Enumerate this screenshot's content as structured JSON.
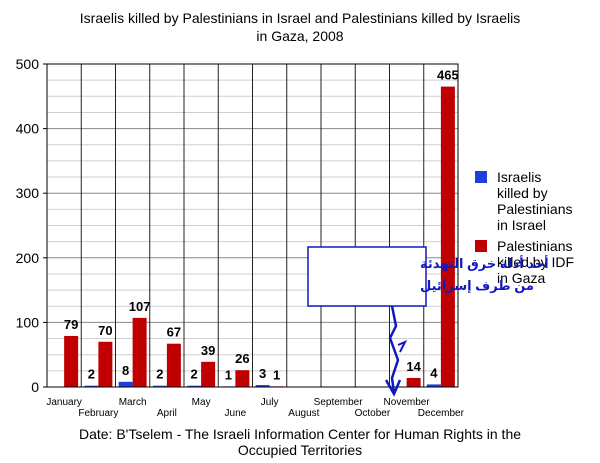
{
  "chart_data": {
    "type": "bar",
    "title": "Israelis killed by Palestinians in Israel and Palestinians killed by Israelis in Gaza, 2008",
    "title_lines": [
      "Israelis killed by Palestinians in Israel and Palestinians killed by Israelis",
      "in Gaza, 2008"
    ],
    "categories": [
      "January",
      "February",
      "March",
      "April",
      "May",
      "June",
      "July",
      "August",
      "September",
      "October",
      "November",
      "December"
    ],
    "series": [
      {
        "name": "Israelis killed by Palestinians in Israel",
        "legend_lines": [
          "Israelis",
          "killed by",
          "Palestinians",
          "in Israel"
        ],
        "color": "#1f3fdd",
        "values": [
          0,
          2,
          8,
          2,
          2,
          1,
          3,
          0,
          0,
          0,
          0,
          4
        ],
        "labels": [
          "",
          "2",
          "8",
          "2",
          "2",
          "1",
          "3",
          "",
          "",
          "",
          "",
          "4"
        ]
      },
      {
        "name": "Palestinians killed by IDF in Gaza",
        "legend_lines": [
          "Palestinians",
          "killed by IDF",
          "in Gaza"
        ],
        "color": "#c00000",
        "values": [
          79,
          70,
          107,
          67,
          39,
          26,
          1,
          0,
          0,
          0,
          14,
          465
        ],
        "labels": [
          "79",
          "70",
          "107",
          "67",
          "39",
          "26",
          "1",
          "",
          "",
          "",
          "14",
          "465"
        ]
      }
    ],
    "ylim": [
      0,
      500
    ],
    "yticks": [
      0,
      100,
      200,
      300,
      400,
      500
    ],
    "grid": true,
    "legend_position": "right",
    "annotation": {
      "lines": [
        "أحد أدلة خرق التهدئة",
        "من طرف إسرائيل"
      ],
      "category": "November",
      "color": "#1018c0"
    },
    "caption_lines": [
      "Date: B'Tselem - The Israeli Information Center for Human Rights in the",
      "Occupied Territories"
    ]
  }
}
